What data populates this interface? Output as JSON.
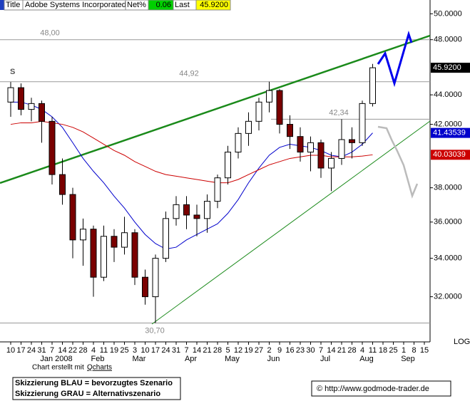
{
  "header": {
    "title_label": "Title",
    "name": "Adobe Systems Incorporated",
    "net_label": "Net%",
    "net": "0.06",
    "last_label": "Last",
    "last": "45.9200"
  },
  "chart_data": {
    "type": "candlestick",
    "log_scale": true,
    "scale_label": "LOG",
    "marker": "S",
    "categories": [
      "10",
      "17",
      "24",
      "31",
      "7",
      "14",
      "22",
      "28",
      "4",
      "11",
      "19",
      "25",
      "3",
      "10",
      "17",
      "24",
      "31",
      "7",
      "14",
      "21",
      "28",
      "5",
      "12",
      "19",
      "27",
      "2",
      "9",
      "16",
      "23",
      "30",
      "7",
      "14",
      "21",
      "28",
      "4",
      "11",
      "18",
      "25",
      "1",
      "8",
      "15"
    ],
    "months": [
      null,
      null,
      null,
      null,
      "Jan 2008",
      null,
      null,
      null,
      "Feb",
      null,
      null,
      null,
      "Mar",
      null,
      null,
      null,
      null,
      "Apr",
      null,
      null,
      null,
      "May",
      null,
      null,
      null,
      "Jun",
      null,
      null,
      null,
      null,
      "Jul",
      null,
      null,
      null,
      "Aug",
      null,
      null,
      null,
      "Sep",
      null,
      null
    ],
    "open": [
      43.5,
      44.5,
      43.0,
      43.4,
      42.2,
      38.8,
      37.6,
      35.0,
      35.6,
      33.0,
      35.2,
      34.6,
      35.4,
      33.0,
      32.0,
      34.0,
      36.2,
      37.0,
      36.4,
      36.2,
      37.2,
      38.6,
      40.2,
      41.4,
      42.2,
      43.5,
      44.3,
      42.0,
      41.2,
      40.2,
      40.8,
      39.2,
      39.8,
      41.0,
      40.8,
      43.4,
      null,
      null,
      null,
      null,
      null
    ],
    "high": [
      44.9,
      44.8,
      43.8,
      43.6,
      42.5,
      39.8,
      38.0,
      36.2,
      35.8,
      35.8,
      35.6,
      36.3,
      35.6,
      33.4,
      34.2,
      36.6,
      37.5,
      37.5,
      37.0,
      37.6,
      38.8,
      40.6,
      41.8,
      42.8,
      43.8,
      44.92,
      44.4,
      42.6,
      41.8,
      41.2,
      41.0,
      40.2,
      42.34,
      41.8,
      43.6,
      46.2,
      null,
      null,
      null,
      null,
      null
    ],
    "low": [
      42.5,
      42.6,
      42.2,
      40.8,
      38.2,
      37.0,
      34.0,
      33.6,
      32.0,
      32.8,
      33.8,
      34.2,
      32.6,
      31.6,
      30.7,
      33.8,
      35.8,
      35.6,
      35.2,
      35.4,
      36.8,
      38.2,
      39.8,
      40.6,
      41.6,
      42.8,
      41.4,
      40.4,
      39.6,
      39.0,
      38.6,
      37.8,
      39.4,
      39.8,
      40.6,
      43.2,
      null,
      null,
      null,
      null,
      null
    ],
    "close": [
      44.5,
      43.0,
      43.4,
      42.2,
      38.8,
      37.6,
      35.0,
      35.6,
      33.0,
      35.2,
      34.6,
      35.4,
      33.0,
      32.0,
      34.0,
      36.2,
      37.0,
      36.4,
      36.2,
      37.2,
      38.6,
      40.2,
      41.4,
      42.2,
      43.5,
      44.3,
      42.0,
      41.2,
      40.2,
      40.8,
      39.2,
      39.8,
      41.0,
      40.8,
      43.4,
      45.92,
      null,
      null,
      null,
      null,
      null
    ],
    "up_color": "#ffffff",
    "down_color": "#7a0000",
    "series": [
      {
        "color": "#0000cc",
        "values": [
          43.5,
          43.5,
          43.3,
          43.0,
          42.5,
          41.8,
          40.8,
          39.8,
          39.0,
          38.3,
          37.5,
          36.8,
          36.0,
          35.3,
          34.8,
          34.5,
          34.6,
          35.0,
          35.3,
          35.6,
          35.9,
          36.5,
          37.3,
          38.3,
          39.2,
          40.0,
          40.5,
          40.7,
          40.6,
          40.5,
          40.3,
          40.0,
          39.9,
          40.2,
          40.7,
          41.43539,
          null,
          null,
          null,
          null,
          null
        ]
      },
      {
        "color": "#cc0000",
        "values": [
          42.0,
          42.1,
          42.1,
          42.2,
          42.1,
          42.0,
          41.8,
          41.5,
          41.1,
          40.7,
          40.3,
          40.0,
          39.6,
          39.3,
          39.0,
          38.8,
          38.7,
          38.6,
          38.5,
          38.4,
          38.3,
          38.3,
          38.5,
          38.8,
          39.1,
          39.4,
          39.6,
          39.8,
          39.9,
          40.0,
          40.0,
          39.9,
          39.9,
          39.9,
          39.95,
          40.03039,
          null,
          null,
          null,
          null,
          null
        ]
      }
    ],
    "ylim": [
      29.8,
      51.1
    ],
    "yticks": [
      {
        "value": 32,
        "label": "32.0000"
      },
      {
        "value": 34,
        "label": "34.0000"
      },
      {
        "value": 36,
        "label": "36.0000"
      },
      {
        "value": 38,
        "label": "38.0000"
      },
      {
        "value": 42,
        "label": "42.0000"
      },
      {
        "value": 44,
        "label": "44.0000"
      },
      {
        "value": 48,
        "label": "48.0000"
      },
      {
        "value": 50,
        "label": "50.0000"
      }
    ],
    "levels": [
      {
        "value": 48,
        "label": "48,00"
      },
      {
        "value": 44.92,
        "label": "44,92"
      },
      {
        "value": 42.34,
        "label": "42,34"
      },
      {
        "value": 30.7,
        "label": "30,70"
      }
    ],
    "axis_markers": [
      {
        "value": 45.92,
        "label": "45.9200",
        "color": "#000000"
      },
      {
        "value": 41.43539,
        "label": "41.43539",
        "color": "#0000cc"
      },
      {
        "value": 40.03039,
        "label": "40.03039",
        "color": "#cc0000"
      }
    ]
  },
  "footer": {
    "credit": "Chart erstellt mit",
    "credit_link": "Qcharts",
    "blue_note": "Skizzierung BLAU = bevorzugtes Szenario",
    "gray_note": "Skizzierung GRAU = Alternativszenario",
    "copyright": "© http://www.godmode-trader.de"
  }
}
